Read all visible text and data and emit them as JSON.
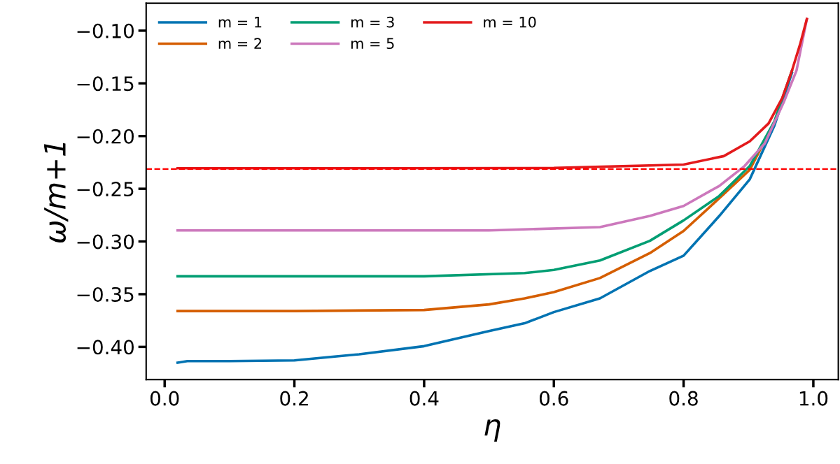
{
  "chart_data": {
    "type": "line",
    "xlabel": "η",
    "ylabel": "ω/m+1",
    "xlim": [
      -0.0285,
      1.0385
    ],
    "ylim": [
      -0.431,
      -0.074
    ],
    "xticks": [
      {
        "value": 0.0,
        "label": "0.0"
      },
      {
        "value": 0.2,
        "label": "0.2"
      },
      {
        "value": 0.4,
        "label": "0.4"
      },
      {
        "value": 0.6,
        "label": "0.6"
      },
      {
        "value": 0.8,
        "label": "0.8"
      },
      {
        "value": 1.0,
        "label": "1.0"
      }
    ],
    "yticks": [
      {
        "value": -0.1,
        "label": "−0.10"
      },
      {
        "value": -0.15,
        "label": "−0.15"
      },
      {
        "value": -0.2,
        "label": "−0.20"
      },
      {
        "value": -0.25,
        "label": "−0.25"
      },
      {
        "value": -0.3,
        "label": "−0.30"
      },
      {
        "value": -0.35,
        "label": "−0.35"
      },
      {
        "value": -0.4,
        "label": "−0.40"
      }
    ],
    "grid": false,
    "legend": "top left",
    "marker": "none",
    "line_style": "solid",
    "series": [
      {
        "name": "m = 1",
        "color": "#0173b2",
        "x": [
          0.02,
          0.035,
          0.1,
          0.2,
          0.3,
          0.4,
          0.5,
          0.555,
          0.6,
          0.671,
          0.748,
          0.8,
          0.855,
          0.902,
          0.94,
          0.967
        ],
        "values": [
          -0.415,
          -0.4135,
          -0.4135,
          -0.4128,
          -0.407,
          -0.3993,
          -0.385,
          -0.3776,
          -0.367,
          -0.354,
          -0.328,
          -0.3135,
          -0.2758,
          -0.241,
          -0.19,
          -0.14
        ]
      },
      {
        "name": "m = 2",
        "color": "#d55e00",
        "x": [
          0.02,
          0.2,
          0.4,
          0.5,
          0.555,
          0.6,
          0.671,
          0.748,
          0.8,
          0.855,
          0.902,
          0.94
        ],
        "values": [
          -0.366,
          -0.366,
          -0.365,
          -0.3597,
          -0.354,
          -0.348,
          -0.3347,
          -0.311,
          -0.29,
          -0.259,
          -0.232,
          -0.187
        ]
      },
      {
        "name": "m = 3",
        "color": "#029e73",
        "x": [
          0.02,
          0.2,
          0.4,
          0.555,
          0.6,
          0.671,
          0.748,
          0.8,
          0.855,
          0.902,
          0.94,
          0.967
        ],
        "values": [
          -0.333,
          -0.333,
          -0.333,
          -0.33,
          -0.327,
          -0.318,
          -0.2994,
          -0.28,
          -0.2568,
          -0.2284,
          -0.186,
          -0.138
        ]
      },
      {
        "name": "m = 5",
        "color": "#cc78bc",
        "x": [
          0.02,
          0.3,
          0.5,
          0.671,
          0.748,
          0.8,
          0.855,
          0.894,
          0.925,
          0.955,
          0.974,
          0.99
        ],
        "values": [
          -0.2895,
          -0.2895,
          -0.2895,
          -0.2864,
          -0.2758,
          -0.2663,
          -0.2473,
          -0.2284,
          -0.2071,
          -0.167,
          -0.138,
          -0.089
        ]
      },
      {
        "name": "m = 10",
        "color": "#e31a1c",
        "x": [
          0.02,
          0.3,
          0.6,
          0.8,
          0.862,
          0.902,
          0.931,
          0.952,
          0.967,
          0.98,
          0.99
        ],
        "values": [
          -0.2305,
          -0.2305,
          -0.2303,
          -0.227,
          -0.219,
          -0.205,
          -0.188,
          -0.164,
          -0.138,
          -0.112,
          -0.089
        ]
      }
    ],
    "ref_lines": [
      {
        "axis": "y",
        "value": -0.2312,
        "color": "#ff0000",
        "line_style": "dashed"
      }
    ]
  }
}
